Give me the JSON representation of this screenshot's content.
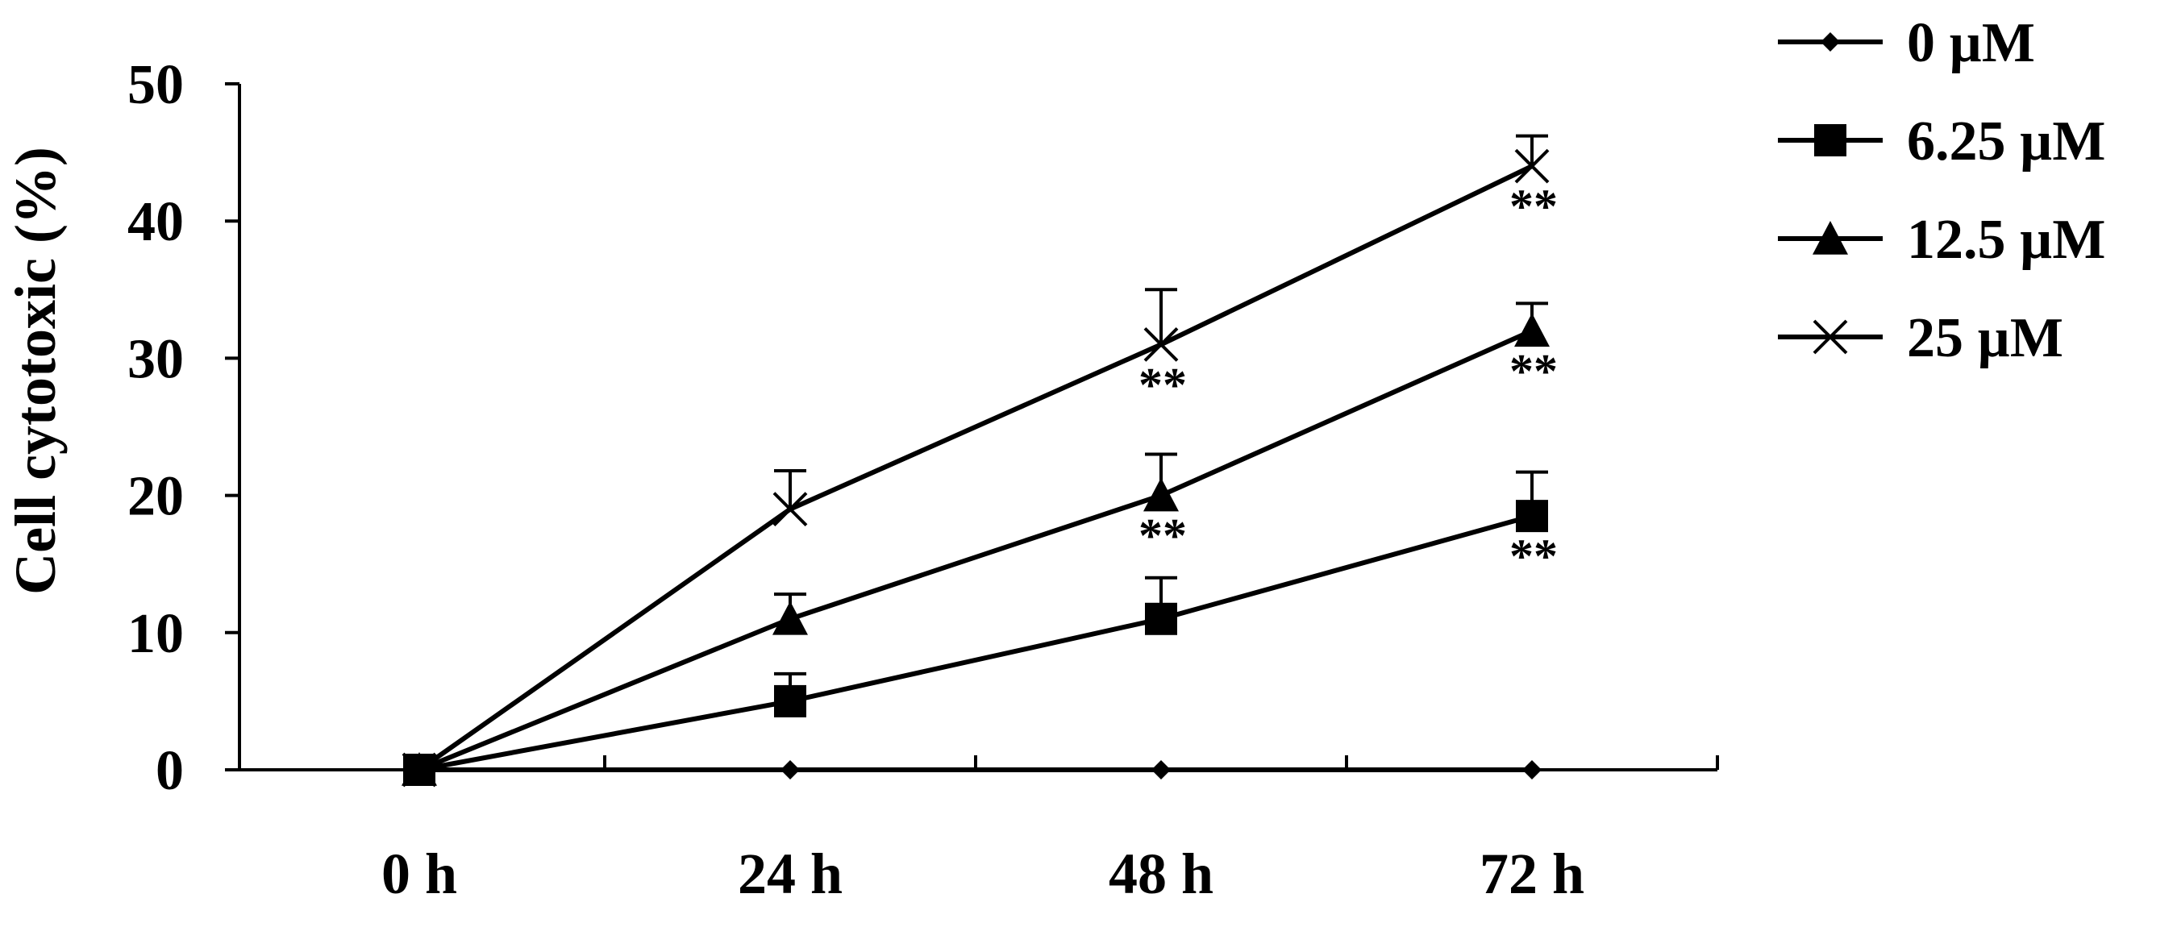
{
  "chart_data": {
    "type": "line",
    "categories": [
      "0 h",
      "24 h",
      "48 h",
      "72 h"
    ],
    "ylabel": "Cell cytotoxic (%)",
    "xlabel": "",
    "ylim": [
      0,
      50
    ],
    "yticks": [
      "0",
      "10",
      "20",
      "30",
      "40",
      "50"
    ],
    "legend_position": "top-right",
    "series": [
      {
        "name": "0 µM",
        "marker": "diamond",
        "values": [
          0,
          0,
          0,
          0
        ],
        "errors": [
          0,
          0,
          0,
          0
        ],
        "significance": [
          "",
          "",
          "",
          ""
        ]
      },
      {
        "name": "6.25 µM",
        "marker": "square",
        "values": [
          0,
          5,
          11,
          18.5
        ],
        "errors": [
          0,
          2,
          3,
          3.2
        ],
        "significance": [
          "",
          "",
          "",
          "**"
        ]
      },
      {
        "name": "12.5 µM",
        "marker": "triangle",
        "values": [
          0,
          11,
          20,
          32
        ],
        "errors": [
          0,
          1.8,
          3,
          2
        ],
        "significance": [
          "",
          "",
          "**",
          "**"
        ]
      },
      {
        "name": "25 µM",
        "marker": "x",
        "values": [
          0,
          19,
          31,
          44
        ],
        "errors": [
          0,
          2.8,
          4,
          2.2
        ],
        "significance": [
          "",
          "",
          "**",
          "**"
        ]
      }
    ],
    "colors": {
      "line": "#000000",
      "background": "#ffffff"
    }
  }
}
